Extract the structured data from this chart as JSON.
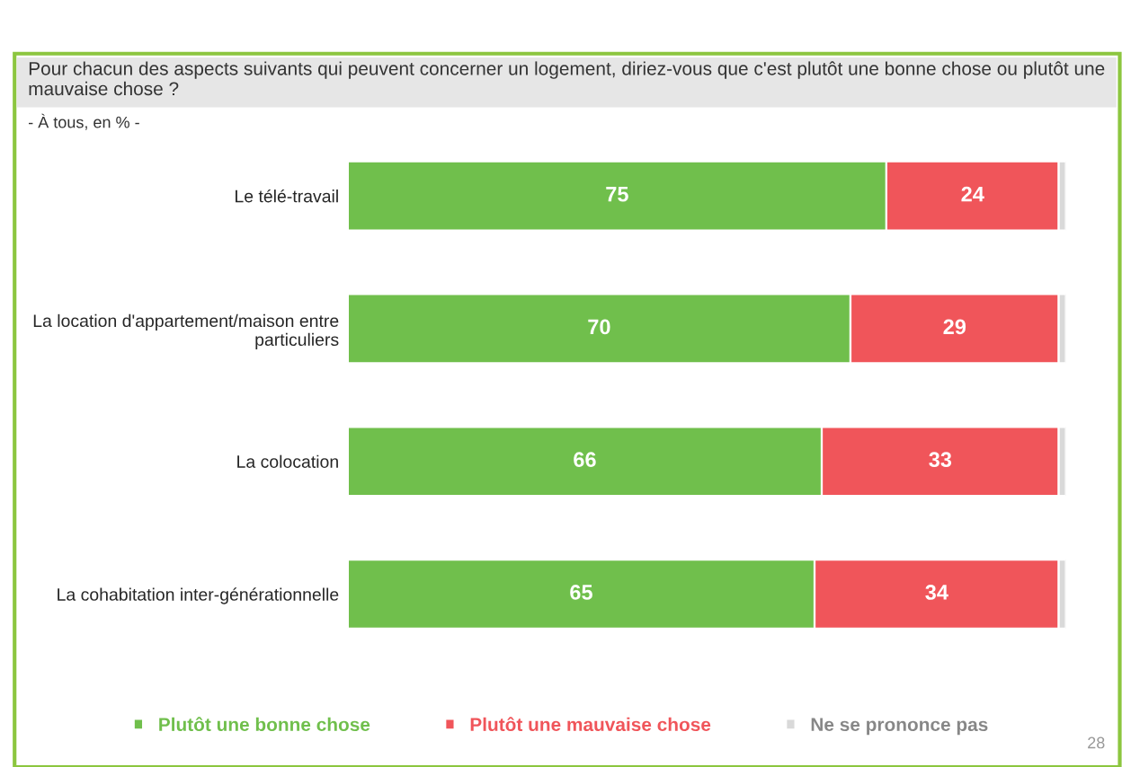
{
  "chart_data": {
    "type": "bar",
    "orientation": "horizontal",
    "stacked": true,
    "title": "Pour chacun des aspects suivants qui peuvent concerner un logement, diriez-vous que c'est plutôt une bonne chose ou plutôt une mauvaise chose ?",
    "subtitle": "- À tous, en % -",
    "categories": [
      "Le télé-travail",
      "La location d'appartement/maison entre particuliers",
      "La colocation",
      "La cohabitation inter-générationnelle"
    ],
    "series": [
      {
        "name": "Plutôt une bonne chose",
        "color": "#70bf4c",
        "values": [
          75,
          70,
          66,
          65
        ],
        "value_labels": [
          "75",
          "70",
          "66",
          "65"
        ]
      },
      {
        "name": "Plutôt une mauvaise chose",
        "color": "#f0555a",
        "values": [
          24,
          29,
          33,
          34
        ],
        "value_labels": [
          "24",
          "29",
          "33",
          "34"
        ]
      },
      {
        "name": "Ne se prononce pas",
        "color": "#d9d9d9",
        "values": [
          1,
          1,
          1,
          1
        ],
        "value_labels": [
          null,
          null,
          null,
          null
        ]
      }
    ],
    "legend": "bottom",
    "annotations": [
      "28"
    ]
  }
}
